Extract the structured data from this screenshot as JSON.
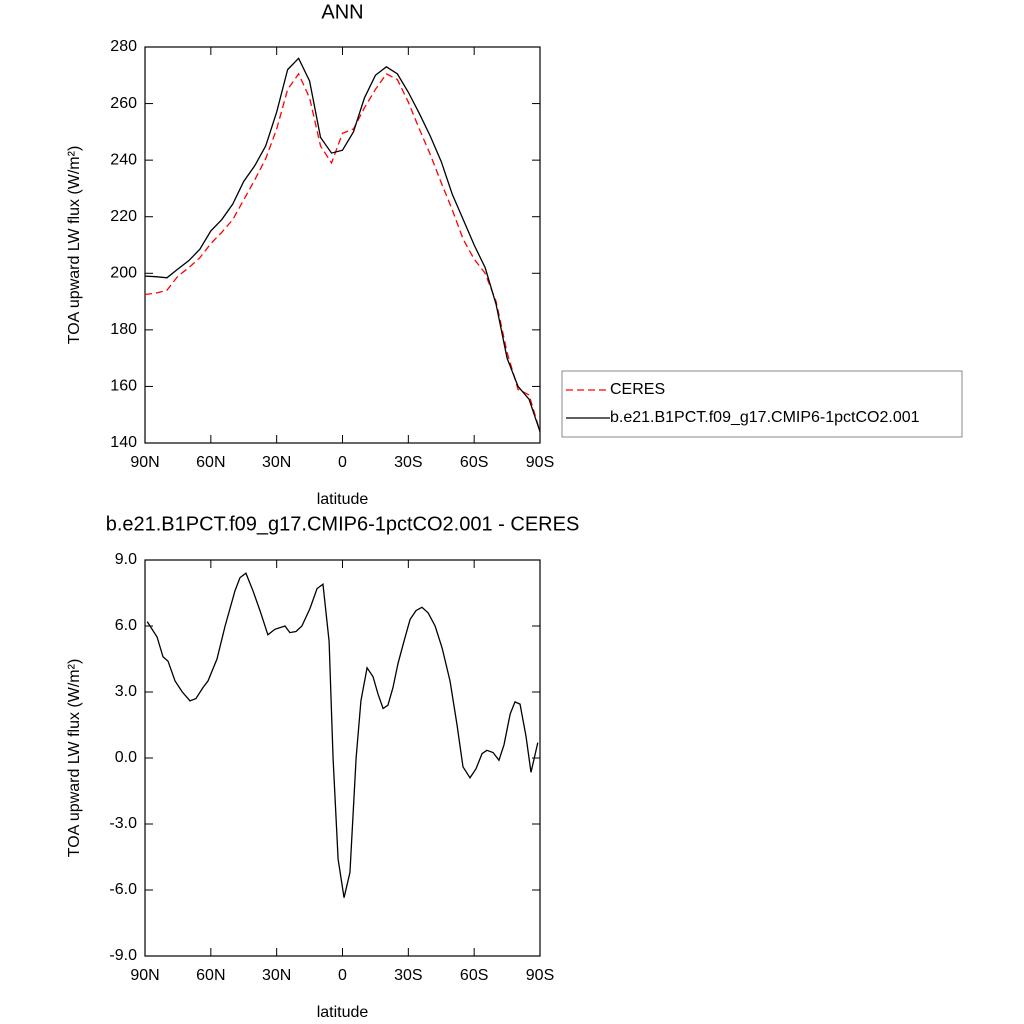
{
  "chart_data": [
    {
      "type": "line",
      "title": "ANN",
      "xlabel": "latitude",
      "ylabel": "TOA upward LW flux (W/m²)",
      "x": [
        90,
        85,
        80,
        75,
        70,
        65,
        60,
        55,
        50,
        45,
        40,
        35,
        30,
        25,
        20,
        15,
        10,
        5,
        0,
        -5,
        -10,
        -15,
        -20,
        -25,
        -30,
        -35,
        -40,
        -45,
        -50,
        -55,
        -60,
        -65,
        -70,
        -75,
        -80,
        -85,
        -90
      ],
      "xlim": [
        90,
        -90
      ],
      "xticks": [
        {
          "value": 90,
          "label": "90N"
        },
        {
          "value": 60,
          "label": "60N"
        },
        {
          "value": 30,
          "label": "30N"
        },
        0,
        {
          "value": -30,
          "label": "30S"
        },
        {
          "value": -60,
          "label": "60S"
        },
        {
          "value": -90,
          "label": "90S"
        }
      ],
      "ylim": [
        140,
        280
      ],
      "yticks": [
        140,
        160,
        180,
        200,
        220,
        240,
        260,
        280
      ],
      "legend": "right",
      "series": [
        {
          "name": "CERES",
          "color": "#ff0000",
          "linestyle": "dashed",
          "values": [
            192.5,
            193,
            194,
            199,
            202,
            205.5,
            210.5,
            214.5,
            219,
            226,
            233,
            240.5,
            251,
            265,
            270.5,
            262,
            245,
            239,
            249.5,
            251,
            258.5,
            265,
            270.5,
            268.5,
            260.5,
            251,
            242,
            232,
            222.5,
            212,
            205,
            200,
            190,
            172,
            159,
            157,
            144
          ]
        },
        {
          "name": "b.e21.B1PCT.f09_g17.CMIP6-1pctCO2.001",
          "color": "#000000",
          "linestyle": "solid",
          "values": [
            199,
            198.8,
            198.4,
            201.5,
            204.5,
            208.5,
            215,
            219,
            224.5,
            232.5,
            238,
            245,
            257,
            272,
            276,
            268,
            248,
            242.5,
            243.5,
            250,
            262,
            270,
            273,
            270.5,
            264,
            256.5,
            248.5,
            239.5,
            228,
            219,
            210,
            202,
            189,
            170,
            160,
            155.5,
            144
          ]
        }
      ]
    },
    {
      "type": "line",
      "title": "b.e21.B1PCT.f09_g17.CMIP6-1pctCO2.001 - CERES",
      "xlabel": "latitude",
      "ylabel": "TOA upward LW flux (W/m²)",
      "x": [
        89,
        84.5,
        81.8,
        79.5,
        76.3,
        73,
        69.5,
        66.8,
        63.6,
        61.3,
        57.2,
        53.5,
        49,
        46.7,
        44,
        40.8,
        37.6,
        34,
        30.8,
        26.2,
        24,
        21.2,
        18.5,
        14.8,
        11.6,
        8.9,
        6.1,
        4.3,
        2,
        -0.7,
        -3.4,
        -6.2,
        -8.4,
        -11.2,
        -13.9,
        -16.2,
        -18.5,
        -20.7,
        -23,
        -25.3,
        -28,
        -30.8,
        -33.5,
        -36.2,
        -39,
        -42.2,
        -45.4,
        -49,
        -52.2,
        -54.9,
        -58.1,
        -60.8,
        -63.6,
        -65.8,
        -68.6,
        -71.3,
        -73.6,
        -76.4,
        -78.6,
        -80.9,
        -83.6,
        -85.9,
        -89
      ],
      "xlim": [
        90,
        -90
      ],
      "xticks": [
        {
          "value": 90,
          "label": "90N"
        },
        {
          "value": 60,
          "label": "60N"
        },
        {
          "value": 30,
          "label": "30N"
        },
        0,
        {
          "value": -30,
          "label": "30S"
        },
        {
          "value": -60,
          "label": "60S"
        },
        {
          "value": -90,
          "label": "90S"
        }
      ],
      "ylim": [
        -9,
        9
      ],
      "yticks": [
        {
          "value": -9,
          "label": "-9.0"
        },
        {
          "value": -6,
          "label": "-6.0"
        },
        {
          "value": -3,
          "label": "-3.0"
        },
        {
          "value": 0,
          "label": "0.0"
        },
        {
          "value": 3,
          "label": "3.0"
        },
        {
          "value": 6,
          "label": "6.0"
        },
        {
          "value": 9,
          "label": "9.0"
        }
      ],
      "color": "#000000",
      "values": [
        6.2,
        5.5,
        4.6,
        4.4,
        3.5,
        3.0,
        2.6,
        2.7,
        3.2,
        3.5,
        4.5,
        6.0,
        7.6,
        8.2,
        8.4,
        7.6,
        6.7,
        5.6,
        5.85,
        6.0,
        5.7,
        5.75,
        6.0,
        6.8,
        7.7,
        7.9,
        5.3,
        0.0,
        -4.6,
        -6.35,
        -5.2,
        0.0,
        2.6,
        4.1,
        3.7,
        2.9,
        2.25,
        2.4,
        3.2,
        4.3,
        5.3,
        6.3,
        6.7,
        6.85,
        6.6,
        6.0,
        5.0,
        3.5,
        1.5,
        -0.4,
        -0.9,
        -0.5,
        0.2,
        0.35,
        0.25,
        -0.1,
        0.6,
        2.0,
        2.55,
        2.45,
        1.0,
        -0.65,
        0.7
      ]
    }
  ]
}
